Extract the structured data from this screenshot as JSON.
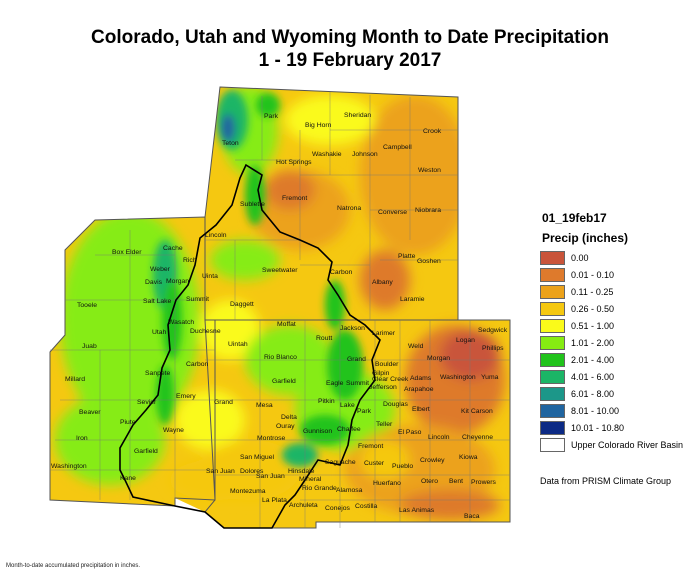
{
  "title_line1": "Colorado, Utah and Wyoming Month to Date Precipitation",
  "title_line2": "1 - 19 February 2017",
  "legend": {
    "map_id": "01_19feb17",
    "title": "Precip (inches)",
    "items": [
      {
        "label": "0.00",
        "color": "#c9543a"
      },
      {
        "label": "0.01 - 0.10",
        "color": "#de7a2c"
      },
      {
        "label": "0.11 - 0.25",
        "color": "#eca21a"
      },
      {
        "label": "0.26 - 0.50",
        "color": "#f5c811"
      },
      {
        "label": "0.51 - 1.00",
        "color": "#fafa1a"
      },
      {
        "label": "1.01 - 2.00",
        "color": "#86ec12"
      },
      {
        "label": "2.01 - 4.00",
        "color": "#20c31b"
      },
      {
        "label": "4.01 - 6.00",
        "color": "#1bb566"
      },
      {
        "label": "6.01 - 8.00",
        "color": "#1c9789"
      },
      {
        "label": "8.01 - 10.00",
        "color": "#2065a0"
      },
      {
        "label": "10.01 - 10.80",
        "color": "#0c2a85"
      },
      {
        "label": "Upper Colorado River Basin",
        "color": "#ffffff"
      }
    ]
  },
  "source_note": "Data from PRISM Climate Group",
  "footnote": "Month-to-date accumulated precipitation in inches.",
  "county_labels": {
    "Park": "Park",
    "Big Horn": "Big Horn",
    "Sheridan": "Sheridan",
    "Crook": "Crook",
    "Teton": "Teton",
    "Washakie": "Washakie",
    "Johnson": "Johnson",
    "Campbell": "Campbell",
    "Hot Springs": "Hot Springs",
    "Weston": "Weston",
    "Fremont": "Fremont",
    "Natrona": "Natrona",
    "Converse": "Converse",
    "Niobrara": "Niobrara",
    "Sublette": "Sublette",
    "Lincoln": "Lincoln",
    "Sweetwater": "Sweetwater",
    "Carbon": "Carbon",
    "Platte": "Platte",
    "Goshen": "Goshen",
    "Albany": "Albany",
    "Laramie": "Laramie",
    "Box Elder": "Box Elder",
    "Cache": "Cache",
    "Rich": "Rich",
    "Weber": "Weber",
    "Davis": "Davis",
    "Morgan": "Morgan",
    "Uinta": "Uinta",
    "Tooele": "Tooele",
    "Salt Lake": "Salt Lake",
    "Summit": "Summit",
    "Daggett": "Daggett",
    "Wasatch": "Wasatch",
    "Utah": "Utah",
    "Duchesne": "Duchesne",
    "Moffat": "Moffat",
    "Sedgwick": "Sedgwick",
    "Juab": "Juab",
    "Uintah": "Uintah",
    "Routt": "Routt",
    "Jackson": "Jackson",
    "Larimer": "Larimer",
    "Logan": "Logan",
    "Phillips": "Phillips",
    "Carbon UT": "Carbon",
    "Weld": "Weld",
    "Morgan CO": "Morgan",
    "Rio Blanco": "Rio Blanco",
    "Grand": "Grand",
    "Boulder": "Boulder",
    "Millard": "Millard",
    "Sanpete": "Sanpete",
    "Eagle": "Eagle",
    "Clear Creek": "Clear Creek",
    "Adams": "Adams",
    "Washington": "Washington",
    "Yuma": "Yuma",
    "Garfield": "Garfield",
    "Summit CO": "Summit",
    "Gilpin": "Gilpin",
    "Jefferson": "Jefferson",
    "Arapahoe": "Arapahoe",
    "Emery": "Emery",
    "Grand UT": "Grand",
    "Mesa": "Mesa",
    "Pitkin": "Pitkin",
    "Lake": "Lake",
    "Park CO": "Park",
    "Douglas": "Douglas",
    "Elbert": "Elbert",
    "Kit Carson": "Kit Carson",
    "Beaver": "Beaver",
    "Sevier": "Sevier",
    "Delta": "Delta",
    "Piute": "Piute",
    "Wayne": "Wayne",
    "Gunnison": "Gunnison",
    "Chaffee": "Chaffee",
    "Teller": "Teller",
    "El Paso": "El Paso",
    "Lincoln CO": "Lincoln",
    "Cheyenne": "Cheyenne",
    "Iron": "Iron",
    "Montrose": "Montrose",
    "Ouray": "Ouray",
    "Fremont CO": "Fremont",
    "Garfield UT": "Garfield",
    "Custer": "Custer",
    "Pueblo": "Pueblo",
    "Crowley": "Crowley",
    "Kiowa": "Kiowa",
    "San Miguel": "San Miguel",
    "Saguache": "Saguache",
    "Washington UT": "Washington",
    "Dolores": "Dolores",
    "San Juan CO": "San Juan",
    "Hinsdale": "Hinsdale",
    "Mineral": "Mineral",
    "Kane": "Kane",
    "San Juan": "San Juan",
    "Otero": "Otero",
    "Bent": "Bent",
    "Prowers": "Prowers",
    "Rio Grande": "Rio Grande",
    "Alamosa": "Alamosa",
    "Huerfano": "Huerfano",
    "Montezuma": "Montezuma",
    "La Plata": "La Plata",
    "Archuleta": "Archuleta",
    "Conejos": "Conejos",
    "Costilla": "Costilla",
    "Las Animas": "Las Animas",
    "Baca": "Baca"
  }
}
